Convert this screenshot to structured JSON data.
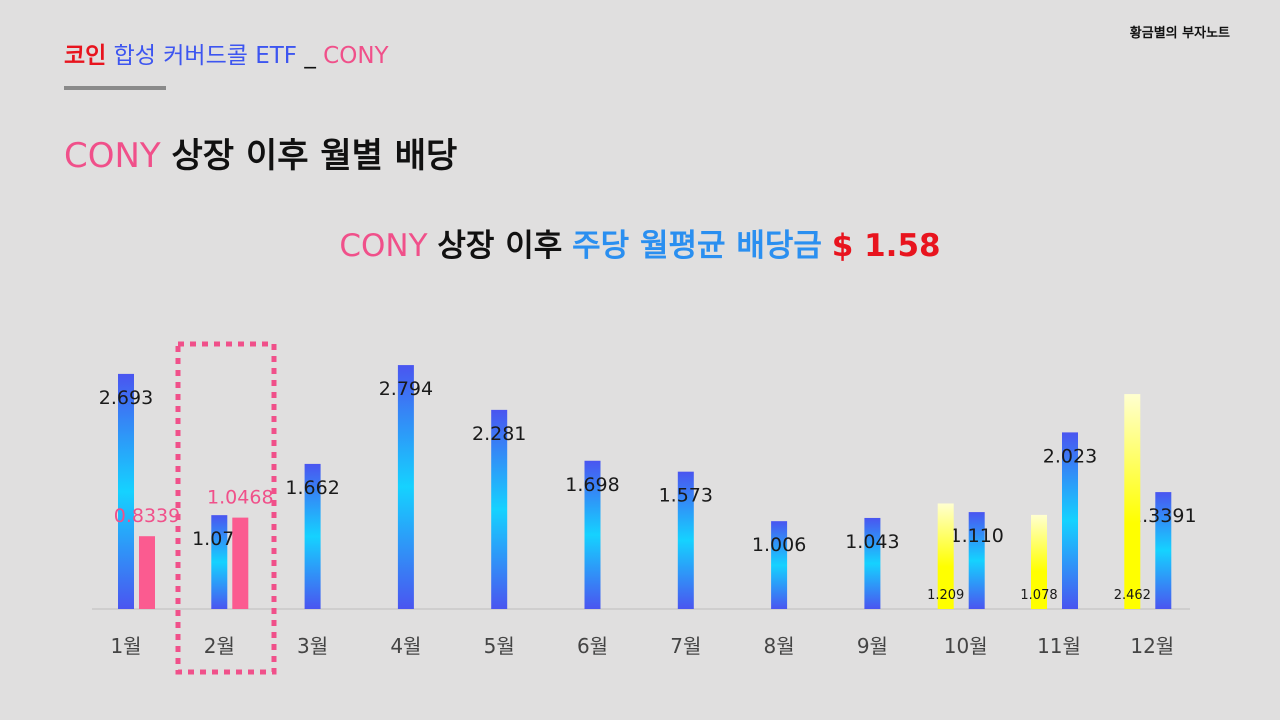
{
  "header": {
    "part1": "코인",
    "part2": "합성 커버드콜 ETF",
    "part3": "_",
    "part4": "CONY"
  },
  "brand": "황금별의 부자노트",
  "page_title": {
    "part1": "CONY",
    "part2": "상장 이후 월별 배당"
  },
  "chart_title": {
    "part1": "CONY",
    "part2": "상장 이후",
    "part3": "주당 월평균 배당금",
    "part4": "$ 1.58"
  },
  "colors": {
    "red": "#e8141e",
    "blue": "#3d55f0",
    "pink": "#f0508a",
    "sky": "#2a8ff0",
    "black": "#111111",
    "bar_pink": "#fb5b90",
    "bar_yellow": "#ffff00"
  },
  "chart_data": {
    "type": "bar",
    "categories": [
      "1월",
      "2월",
      "3월",
      "4월",
      "5월",
      "6월",
      "7월",
      "8월",
      "9월",
      "10월",
      "11월",
      "12월"
    ],
    "ylim": [
      0,
      3
    ],
    "grid": false,
    "highlight_category": "2월",
    "series": [
      {
        "values": [
          2.693,
          1.075,
          1.662,
          2.794,
          2.281,
          1.698,
          1.573,
          1.006,
          1.043,
          1.11,
          2.023,
          1.3391
        ],
        "labels": [
          "2.693",
          "1.075",
          "1.662",
          "2.794",
          "2.281",
          "1.698",
          "1.573",
          "1.006",
          "1.043",
          "1.110",
          "2.023",
          "1.3391"
        ]
      },
      {
        "values": [
          0.8339,
          1.0468,
          null,
          null,
          null,
          null,
          null,
          null,
          null,
          null,
          null,
          null
        ],
        "labels": [
          "0.8339",
          "1.0468",
          "",
          "",
          "",
          "",
          "",
          "",
          "",
          "",
          "",
          ""
        ]
      },
      {
        "values": [
          null,
          null,
          null,
          null,
          null,
          null,
          null,
          null,
          null,
          1.209,
          1.078,
          2.462
        ],
        "labels": [
          "",
          "",
          "",
          "",
          "",
          "",
          "",
          "",
          "",
          "1.209",
          "1.078",
          "2.462"
        ]
      }
    ]
  }
}
